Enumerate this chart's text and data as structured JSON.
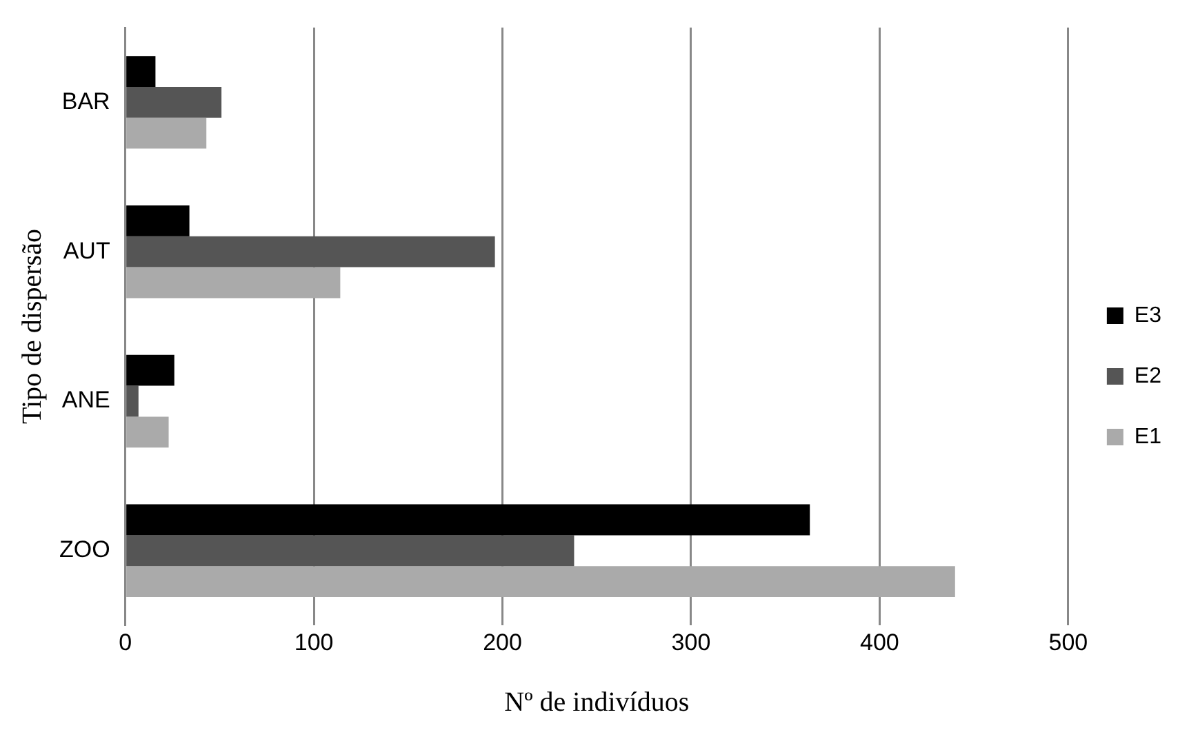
{
  "chart_data": {
    "type": "bar",
    "orientation": "horizontal",
    "xlabel": "Nº de indivíduos",
    "ylabel": "Tipo de dispersão",
    "categories": [
      "BAR",
      "AUT",
      "ANE",
      "ZOO"
    ],
    "series": [
      {
        "name": "E3",
        "color": "#000000",
        "values": [
          16,
          34,
          26,
          363
        ]
      },
      {
        "name": "E2",
        "color": "#555555",
        "values": [
          51,
          196,
          7,
          238
        ]
      },
      {
        "name": "E1",
        "color": "#aaaaaa",
        "values": [
          43,
          114,
          23,
          440
        ]
      }
    ],
    "xlim": [
      0,
      500
    ],
    "xticks": [
      0,
      100,
      200,
      300,
      400,
      500
    ],
    "grid": "x",
    "legend": "right"
  }
}
